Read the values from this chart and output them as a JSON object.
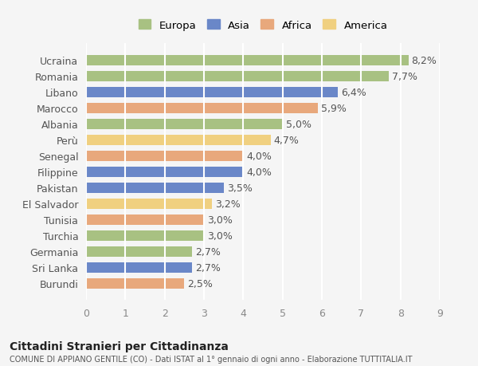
{
  "categories": [
    "Ucraina",
    "Romania",
    "Libano",
    "Marocco",
    "Albania",
    "Perù",
    "Senegal",
    "Filippine",
    "Pakistan",
    "El Salvador",
    "Tunisia",
    "Turchia",
    "Germania",
    "Sri Lanka",
    "Burundi"
  ],
  "values": [
    8.2,
    7.7,
    6.4,
    5.9,
    5.0,
    4.7,
    4.0,
    4.0,
    3.5,
    3.2,
    3.0,
    3.0,
    2.7,
    2.7,
    2.5
  ],
  "labels": [
    "8,2%",
    "7,7%",
    "6,4%",
    "5,9%",
    "5,0%",
    "4,7%",
    "4,0%",
    "4,0%",
    "3,5%",
    "3,2%",
    "3,0%",
    "3,0%",
    "2,7%",
    "2,7%",
    "2,5%"
  ],
  "continents": [
    "Europa",
    "Europa",
    "Asia",
    "Africa",
    "Europa",
    "America",
    "Africa",
    "Asia",
    "Asia",
    "America",
    "Africa",
    "Europa",
    "Europa",
    "Asia",
    "Africa"
  ],
  "colors": {
    "Europa": "#a8c182",
    "Asia": "#6a87c8",
    "Africa": "#e8a87c",
    "America": "#f0d080"
  },
  "legend_order": [
    "Europa",
    "Asia",
    "Africa",
    "America"
  ],
  "xlim": [
    0,
    9
  ],
  "xticks": [
    0,
    1,
    2,
    3,
    4,
    5,
    6,
    7,
    8,
    9
  ],
  "title": "Cittadini Stranieri per Cittadinanza",
  "subtitle": "COMUNE DI APPIANO GENTILE (CO) - Dati ISTAT al 1° gennaio di ogni anno - Elaborazione TUTTITALIA.IT",
  "background_color": "#f5f5f5",
  "bar_height": 0.65,
  "grid_color": "#ffffff",
  "label_fontsize": 9,
  "ytick_fontsize": 9,
  "xtick_fontsize": 9
}
